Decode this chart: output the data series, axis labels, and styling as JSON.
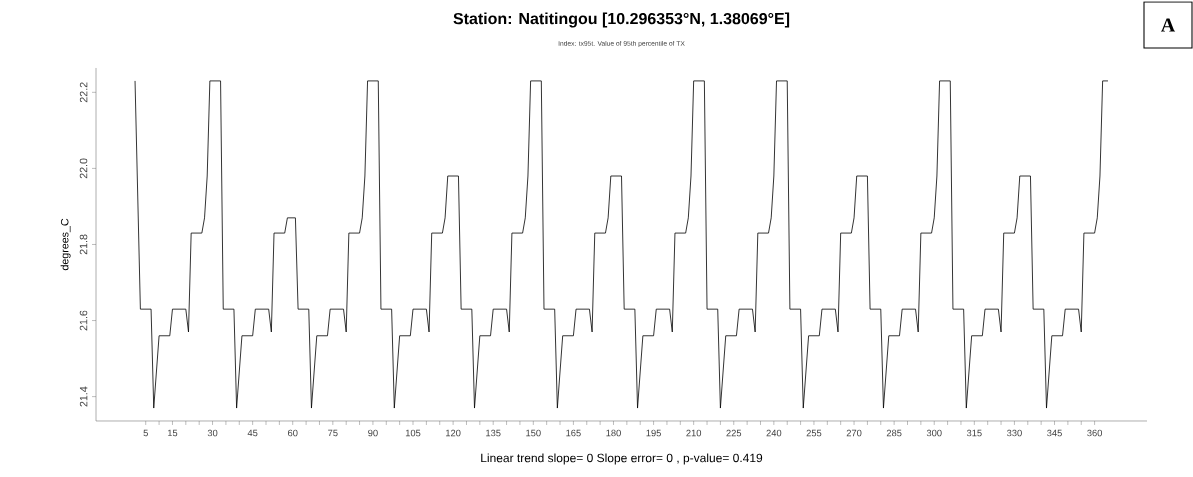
{
  "chart_data": {
    "type": "line",
    "title": "Station: Natitingou [10.296353°N, 1.38069°E]",
    "subtitle": "Index: tx95t. Value of 95th percentile of TX",
    "ylabel": "degrees_C",
    "xlabel": "Linear trend slope= 0    Slope error= 0 ,   p-value= 0.419",
    "annotations": [
      "A"
    ],
    "xlim": [
      -13.6,
      379.6
    ],
    "ylim": [
      21.336,
      22.264
    ],
    "yticks": [
      21.4,
      21.6,
      21.8,
      {
        "value": 22.0,
        "label": "22.0"
      },
      22.2
    ],
    "xticks": [
      5,
      {
        "value": 10,
        "label": null
      },
      15,
      {
        "value": 20,
        "label": null
      },
      {
        "value": 25,
        "label": null
      },
      30,
      {
        "value": 35,
        "label": null
      },
      {
        "value": 40,
        "label": null
      },
      45,
      {
        "value": 50,
        "label": null
      },
      {
        "value": 55,
        "label": null
      },
      60,
      {
        "value": 65,
        "label": null
      },
      {
        "value": 70,
        "label": null
      },
      75,
      {
        "value": 80,
        "label": null
      },
      {
        "value": 85,
        "label": null
      },
      90,
      {
        "value": 95,
        "label": null
      },
      {
        "value": 100,
        "label": null
      },
      105,
      {
        "value": 110,
        "label": null
      },
      {
        "value": 115,
        "label": null
      },
      120,
      {
        "value": 125,
        "label": null
      },
      {
        "value": 130,
        "label": null
      },
      135,
      {
        "value": 140,
        "label": null
      },
      {
        "value": 145,
        "label": null
      },
      150,
      {
        "value": 155,
        "label": null
      },
      {
        "value": 160,
        "label": null
      },
      165,
      {
        "value": 170,
        "label": null
      },
      {
        "value": 175,
        "label": null
      },
      180,
      {
        "value": 185,
        "label": null
      },
      {
        "value": 190,
        "label": null
      },
      195,
      {
        "value": 200,
        "label": null
      },
      {
        "value": 205,
        "label": null
      },
      210,
      {
        "value": 215,
        "label": null
      },
      {
        "value": 220,
        "label": null
      },
      225,
      {
        "value": 230,
        "label": null
      },
      {
        "value": 235,
        "label": null
      },
      240,
      {
        "value": 245,
        "label": null
      },
      {
        "value": 250,
        "label": null
      },
      255,
      {
        "value": 260,
        "label": null
      },
      {
        "value": 265,
        "label": null
      },
      270,
      {
        "value": 275,
        "label": null
      },
      {
        "value": 280,
        "label": null
      },
      285,
      {
        "value": 290,
        "label": null
      },
      {
        "value": 295,
        "label": null
      },
      300,
      {
        "value": 305,
        "label": null
      },
      {
        "value": 310,
        "label": null
      },
      315,
      {
        "value": 320,
        "label": null
      },
      {
        "value": 325,
        "label": null
      },
      330,
      {
        "value": 335,
        "label": null
      },
      {
        "value": 340,
        "label": null
      },
      345,
      {
        "value": 350,
        "label": null
      },
      {
        "value": 355,
        "label": null
      },
      360
    ],
    "series": [
      {
        "color": "#000000",
        "x": [
          1,
          3,
          7,
          8,
          10,
          14,
          15,
          20,
          21,
          22,
          26,
          27,
          28,
          29,
          33,
          34,
          38,
          39,
          41,
          45,
          46,
          51,
          52,
          53,
          57,
          58,
          61,
          62,
          66,
          67,
          69,
          73,
          74,
          79,
          80,
          81,
          85,
          86,
          87,
          88,
          92,
          93,
          97,
          98,
          100,
          104,
          105,
          110,
          111,
          112,
          116,
          117,
          118,
          122,
          123,
          127,
          128,
          130,
          134,
          135,
          140,
          141,
          142,
          146,
          147,
          148,
          149,
          153,
          154,
          158,
          159,
          161,
          165,
          166,
          171,
          172,
          173,
          177,
          178,
          179,
          183,
          184,
          188,
          189,
          191,
          195,
          196,
          201,
          202,
          203,
          207,
          208,
          209,
          210,
          214,
          215,
          219,
          220,
          222,
          226,
          227,
          232,
          233,
          234,
          238,
          239,
          240,
          241,
          245,
          246,
          250,
          251,
          253,
          257,
          258,
          263,
          264,
          265,
          269,
          270,
          271,
          275,
          276,
          280,
          281,
          283,
          287,
          288,
          293,
          294,
          295,
          299,
          300,
          301,
          302,
          306,
          307,
          311,
          312,
          314,
          318,
          319,
          324,
          325,
          326,
          330,
          331,
          332,
          336,
          337,
          341,
          342,
          344,
          348,
          349,
          354,
          355,
          356,
          360,
          361,
          362,
          363,
          365
        ],
        "values": [
          22.23,
          21.63,
          21.63,
          21.37,
          21.56,
          21.56,
          21.63,
          21.63,
          21.57,
          21.83,
          21.83,
          21.87,
          21.98,
          22.23,
          22.23,
          21.63,
          21.63,
          21.37,
          21.56,
          21.56,
          21.63,
          21.63,
          21.57,
          21.83,
          21.83,
          21.87,
          21.87,
          21.63,
          21.63,
          21.37,
          21.56,
          21.56,
          21.63,
          21.63,
          21.57,
          21.83,
          21.83,
          21.87,
          21.98,
          22.23,
          22.23,
          21.63,
          21.63,
          21.37,
          21.56,
          21.56,
          21.63,
          21.63,
          21.57,
          21.83,
          21.83,
          21.87,
          21.98,
          21.98,
          21.63,
          21.63,
          21.37,
          21.56,
          21.56,
          21.63,
          21.63,
          21.57,
          21.83,
          21.83,
          21.87,
          21.98,
          22.23,
          22.23,
          21.63,
          21.63,
          21.37,
          21.56,
          21.56,
          21.63,
          21.63,
          21.57,
          21.83,
          21.83,
          21.87,
          21.98,
          21.98,
          21.63,
          21.63,
          21.37,
          21.56,
          21.56,
          21.63,
          21.63,
          21.57,
          21.83,
          21.83,
          21.87,
          21.98,
          22.23,
          22.23,
          21.63,
          21.63,
          21.37,
          21.56,
          21.56,
          21.63,
          21.63,
          21.57,
          21.83,
          21.83,
          21.87,
          21.98,
          22.23,
          22.23,
          21.63,
          21.63,
          21.37,
          21.56,
          21.56,
          21.63,
          21.63,
          21.57,
          21.83,
          21.83,
          21.87,
          21.98,
          21.98,
          21.63,
          21.63,
          21.37,
          21.56,
          21.56,
          21.63,
          21.63,
          21.57,
          21.83,
          21.83,
          21.87,
          21.98,
          22.23,
          22.23,
          21.63,
          21.63,
          21.37,
          21.56,
          21.56,
          21.63,
          21.63,
          21.57,
          21.83,
          21.83,
          21.87,
          21.98,
          21.98,
          21.63,
          21.63,
          21.37,
          21.56,
          21.56,
          21.63,
          21.63,
          21.57,
          21.83,
          21.83,
          21.87,
          21.98,
          22.23,
          22.23
        ]
      }
    ]
  }
}
